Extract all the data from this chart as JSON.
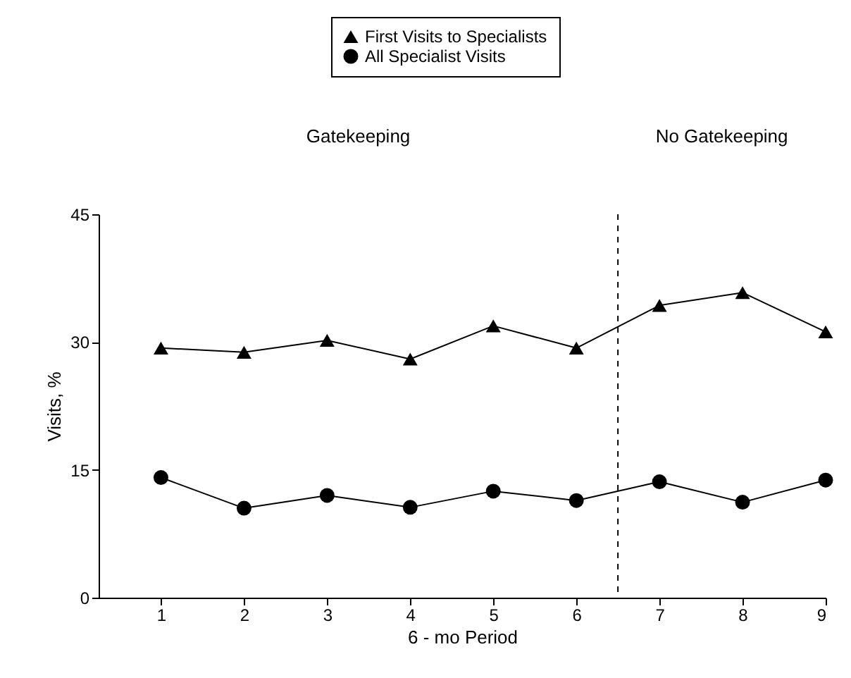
{
  "chart_data": {
    "type": "line",
    "xlabel": "6 - mo Period",
    "ylabel": "Visits, %",
    "x": [
      1,
      2,
      3,
      4,
      5,
      6,
      7,
      8,
      9
    ],
    "xlim": [
      0.25,
      9
    ],
    "xticks": [
      1,
      2,
      3,
      4,
      5,
      6,
      7,
      8,
      9
    ],
    "ylim": [
      0,
      45
    ],
    "yticks": [
      0,
      15,
      30,
      45
    ],
    "series": [
      {
        "name": "First Visits to Specialists",
        "color": "#000000",
        "marker": "triangle",
        "values": [
          29.3,
          28.8,
          30.2,
          28.0,
          31.9,
          29.3,
          34.3,
          35.8,
          31.2
        ]
      },
      {
        "name": "All Specialist Visits",
        "color": "#000000",
        "marker": "circle",
        "values": [
          14.1,
          10.5,
          12.0,
          10.6,
          12.5,
          11.4,
          13.6,
          11.2,
          13.8
        ]
      }
    ],
    "ref_lines": [
      {
        "axis": "x",
        "value": 6.5,
        "line_style": "dashed"
      }
    ],
    "annotations": [
      "Gatekeeping",
      "No Gatekeeping"
    ],
    "legend": "top",
    "grid": false,
    "line_style": "solid"
  }
}
